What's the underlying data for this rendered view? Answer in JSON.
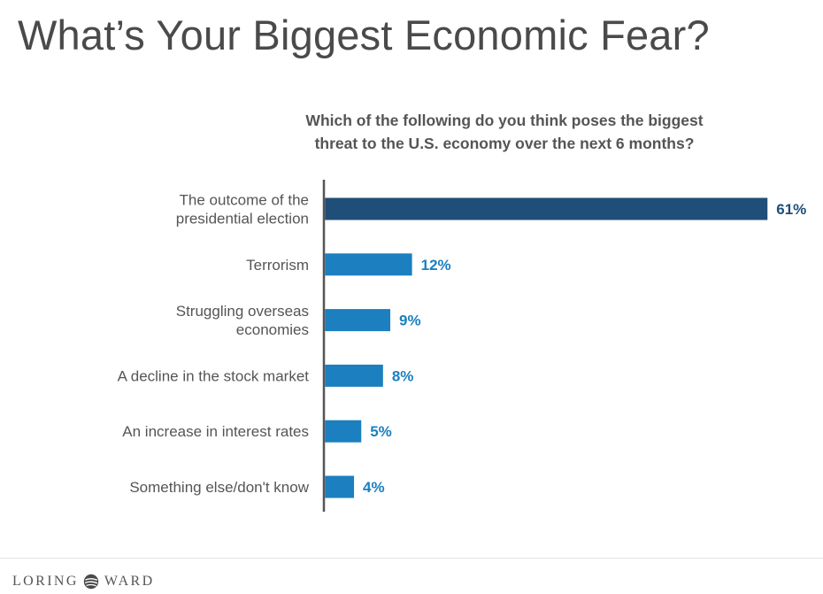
{
  "slide": {
    "title": "What’s Your Biggest Economic Fear?",
    "subtitle_line1": "Which of the following  do you think poses the biggest",
    "subtitle_line2": "threat to the U.S. economy over the next 6 months?"
  },
  "footer": {
    "brand_left": "LORING",
    "brand_right": "WARD"
  },
  "colors": {
    "highlight_bar": "#1f4e79",
    "bar": "#1b7fc0",
    "highlight_label": "#1f4e79",
    "label": "#1b7fc0",
    "axis": "#555555",
    "category_text": "#555555"
  },
  "chart_data": {
    "type": "bar",
    "orientation": "horizontal",
    "title": "Which of the following  do you think poses the biggest threat to the U.S. economy over the next 6 months?",
    "categories": [
      [
        "The outcome of the",
        "presidential election"
      ],
      [
        "Terrorism"
      ],
      [
        "Struggling overseas",
        "economies"
      ],
      [
        "A decline in the stock market"
      ],
      [
        "An increase in interest rates"
      ],
      [
        "Something else/don't know"
      ]
    ],
    "values": [
      61,
      12,
      9,
      8,
      5,
      4
    ],
    "value_labels": [
      "61%",
      "12%",
      "9%",
      "8%",
      "5%",
      "4%"
    ],
    "unit": "%",
    "xlim": [
      0,
      61
    ],
    "grid": false,
    "legend": "none"
  }
}
